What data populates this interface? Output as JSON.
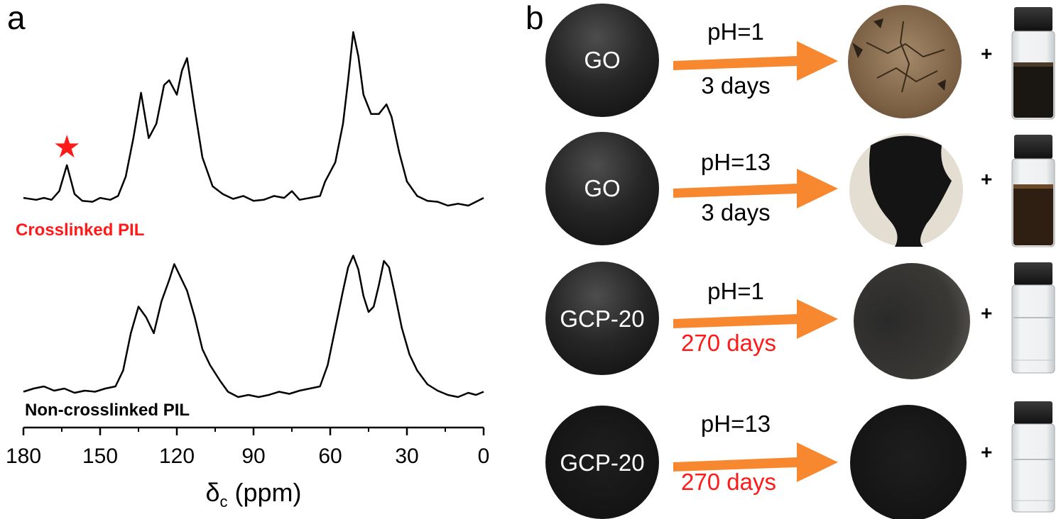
{
  "panels": {
    "a": "a",
    "b": "b"
  },
  "chart_data": {
    "type": "line",
    "title": "",
    "xlabel": "δc (ppm)",
    "ylabel": "",
    "xlim": [
      180,
      0
    ],
    "x_reversed": true,
    "xticks": [
      "180",
      "150",
      "120",
      "90",
      "60",
      "30",
      "0"
    ],
    "xtick_values": [
      180,
      150,
      120,
      90,
      60,
      30,
      0
    ],
    "star_marker": {
      "symbol": "★",
      "x": 163,
      "color": "#ff1a1a"
    },
    "series": [
      {
        "name": "Crosslinked PIL",
        "color": "#ff1a1a",
        "points": [
          [
            180,
            0.08
          ],
          [
            175,
            0.06
          ],
          [
            172,
            0.08
          ],
          [
            169,
            0.06
          ],
          [
            166,
            0.15
          ],
          [
            163,
            0.42
          ],
          [
            160,
            0.12
          ],
          [
            157,
            0.05
          ],
          [
            153,
            0.04
          ],
          [
            150,
            0.08
          ],
          [
            146,
            0.06
          ],
          [
            143,
            0.1
          ],
          [
            140,
            0.3
          ],
          [
            137,
            0.7
          ],
          [
            134,
            1.17
          ],
          [
            131,
            0.7
          ],
          [
            128,
            0.85
          ],
          [
            125,
            1.25
          ],
          [
            123,
            1.3
          ],
          [
            120,
            1.15
          ],
          [
            118,
            1.4
          ],
          [
            116,
            1.53
          ],
          [
            113,
            1.0
          ],
          [
            110,
            0.5
          ],
          [
            106,
            0.2
          ],
          [
            102,
            0.12
          ],
          [
            98,
            0.07
          ],
          [
            94,
            0.1
          ],
          [
            90,
            0.05
          ],
          [
            86,
            0.06
          ],
          [
            82,
            0.1
          ],
          [
            78,
            0.08
          ],
          [
            75,
            0.15
          ],
          [
            72,
            0.06
          ],
          [
            68,
            0.08
          ],
          [
            64,
            0.1
          ],
          [
            62,
            0.25
          ],
          [
            58,
            0.45
          ],
          [
            55,
            0.85
          ],
          [
            53,
            1.3
          ],
          [
            51,
            1.8
          ],
          [
            49,
            1.55
          ],
          [
            47,
            1.15
          ],
          [
            44,
            0.95
          ],
          [
            41,
            0.95
          ],
          [
            38,
            1.05
          ],
          [
            36,
            0.92
          ],
          [
            33,
            0.55
          ],
          [
            30,
            0.25
          ],
          [
            26,
            0.1
          ],
          [
            22,
            0.05
          ],
          [
            18,
            0.04
          ],
          [
            14,
            0.0
          ],
          [
            10,
            0.02
          ],
          [
            6,
            0.0
          ],
          [
            3,
            0.04
          ],
          [
            0,
            0.08
          ]
        ]
      },
      {
        "name": "Non-crosslinked PIL",
        "color": "#000000",
        "points": [
          [
            180,
            0.05
          ],
          [
            176,
            0.08
          ],
          [
            172,
            0.1
          ],
          [
            168,
            0.06
          ],
          [
            164,
            0.08
          ],
          [
            160,
            0.04
          ],
          [
            156,
            0.06
          ],
          [
            152,
            0.05
          ],
          [
            148,
            0.08
          ],
          [
            144,
            0.1
          ],
          [
            141,
            0.25
          ],
          [
            138,
            0.6
          ],
          [
            135,
            0.85
          ],
          [
            132,
            0.75
          ],
          [
            129,
            0.6
          ],
          [
            126,
            0.9
          ],
          [
            123,
            1.1
          ],
          [
            121,
            1.25
          ],
          [
            119,
            1.15
          ],
          [
            116,
            1.0
          ],
          [
            113,
            0.75
          ],
          [
            110,
            0.45
          ],
          [
            107,
            0.3
          ],
          [
            103,
            0.15
          ],
          [
            100,
            0.05
          ],
          [
            96,
            0.0
          ],
          [
            92,
            0.02
          ],
          [
            88,
            0.0
          ],
          [
            84,
            0.02
          ],
          [
            80,
            0.05
          ],
          [
            76,
            0.03
          ],
          [
            72,
            0.06
          ],
          [
            68,
            0.08
          ],
          [
            64,
            0.1
          ],
          [
            61,
            0.3
          ],
          [
            58,
            0.65
          ],
          [
            55,
            1.0
          ],
          [
            53,
            1.22
          ],
          [
            51,
            1.33
          ],
          [
            49,
            1.2
          ],
          [
            47,
            0.95
          ],
          [
            45,
            0.8
          ],
          [
            43,
            0.85
          ],
          [
            41,
            1.05
          ],
          [
            39,
            1.28
          ],
          [
            37,
            1.22
          ],
          [
            35,
            1.0
          ],
          [
            32,
            0.65
          ],
          [
            29,
            0.4
          ],
          [
            26,
            0.25
          ],
          [
            22,
            0.12
          ],
          [
            18,
            0.06
          ],
          [
            14,
            0.02
          ],
          [
            10,
            0.0
          ],
          [
            6,
            0.04
          ],
          [
            3,
            0.02
          ],
          [
            0,
            0.05
          ]
        ]
      }
    ],
    "annotations": [
      "Crosslinked PIL",
      "Non-crosslinked PIL"
    ]
  },
  "panel_b": {
    "rows": [
      {
        "sample": "GO",
        "ph": "pH=1",
        "duration": "3 days",
        "duration_color": "#000000",
        "after_state": "brown-cracked",
        "vial": "dark"
      },
      {
        "sample": "GO",
        "ph": "pH=13",
        "duration": "3 days",
        "duration_color": "#000000",
        "after_state": "partial-dissolved",
        "vial": "brown"
      },
      {
        "sample": "GCP-20",
        "ph": "pH=1",
        "duration": "270 days",
        "duration_color": "#ff1a1a",
        "after_state": "intact",
        "vial": "clear"
      },
      {
        "sample": "GCP-20",
        "ph": "pH=13",
        "duration": "270 days",
        "duration_color": "#ff1a1a",
        "after_state": "intact",
        "vial": "clear"
      }
    ],
    "plus_symbol": "+",
    "arrow_color": "#f7882f"
  }
}
